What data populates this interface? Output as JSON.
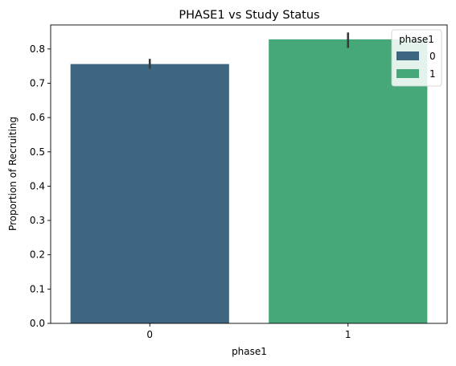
{
  "chart_data": {
    "type": "bar",
    "title": "PHASE1 vs Study Status",
    "xlabel": "phase1",
    "ylabel": "Proportion of Recruiting",
    "categories": [
      "0",
      "1"
    ],
    "values": [
      0.756,
      0.828
    ],
    "error_bars": [
      [
        0.742,
        0.771
      ],
      [
        0.803,
        0.848
      ]
    ],
    "ylim": [
      0,
      0.87
    ],
    "yticks": [
      "0.0",
      "0.1",
      "0.2",
      "0.3",
      "0.4",
      "0.5",
      "0.6",
      "0.7",
      "0.8"
    ],
    "grid": false,
    "legend": {
      "title": "phase1",
      "placement": "top-right",
      "entries": [
        "0",
        "1"
      ]
    },
    "colors": [
      "#3e6680",
      "#46a878"
    ],
    "error_color": "#3a3a3a"
  }
}
